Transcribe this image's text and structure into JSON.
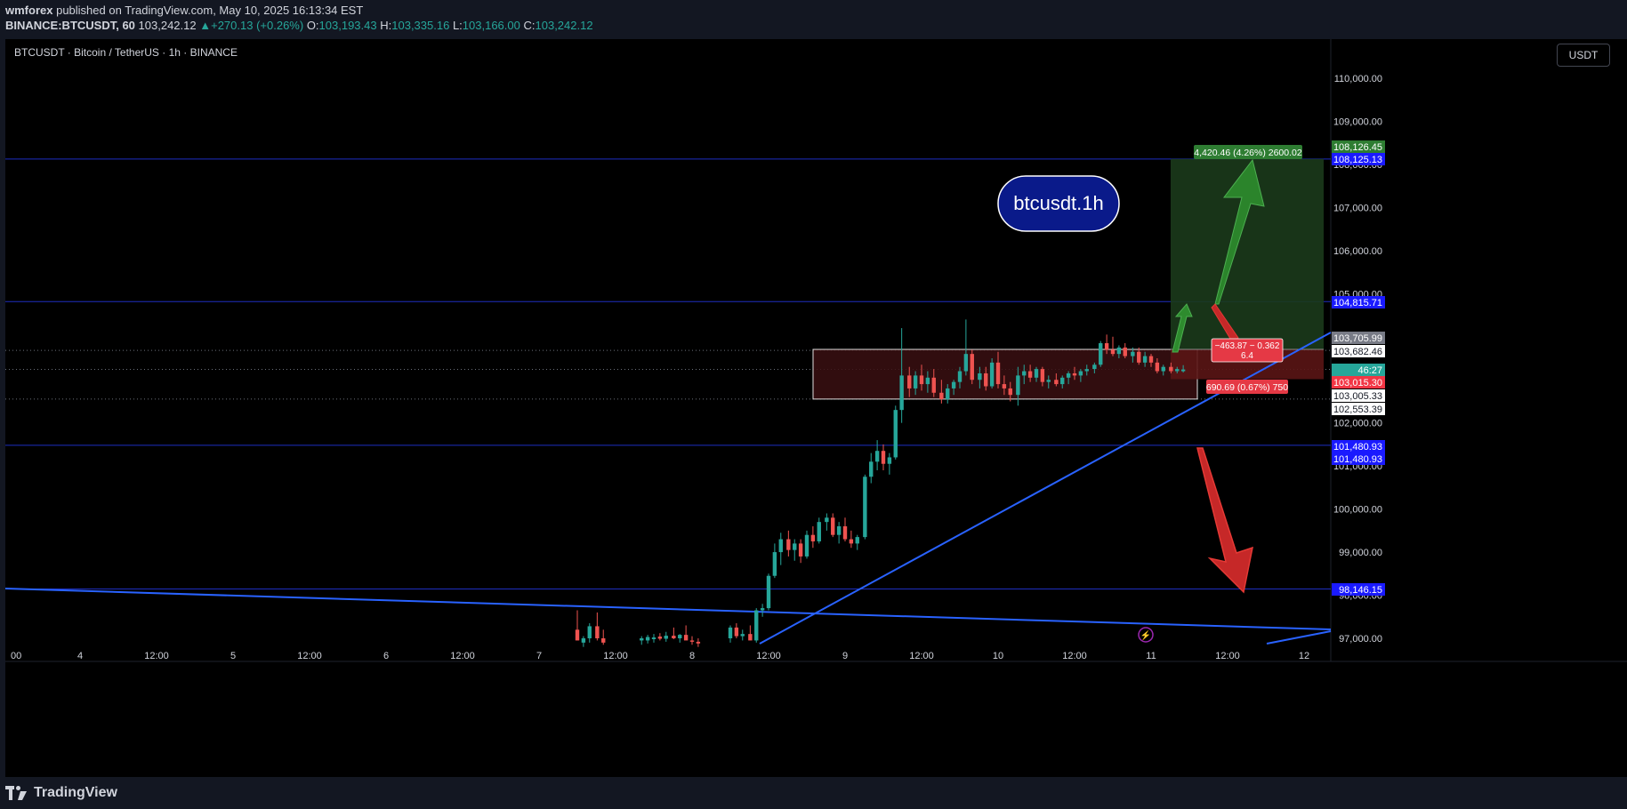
{
  "header": {
    "author": "wmforex",
    "published_text": "published on TradingView.com, May 10, 2025 16:13:34 EST",
    "symbol_line": "BINANCE:BTCUSDT, 60",
    "last": "103,242.12",
    "change": "+270.13 (+0.26%)",
    "open_label": "O:",
    "open": "103,193.43",
    "high_label": "H:",
    "high": "103,335.16",
    "low_label": "L:",
    "low": "103,166.00",
    "close_label": "C:",
    "close": "103,242.12"
  },
  "chart_title": "BTCUSDT · Bitcoin / TetherUS · 1h · BINANCE",
  "currency_button": "USDT",
  "annotation_label": "btcusdt.1h",
  "footer": {
    "brand": "TradingView"
  },
  "colors": {
    "up": "#26a69a",
    "down": "#ef5350",
    "bg": "#000000",
    "trendline": "#2962ff",
    "level_line": "#1e2ebf",
    "target_zone": "#1b3a1b",
    "stop_zone": "#5a1515",
    "green_arrow": "#2e8b2e",
    "red_arrow": "#c62828"
  },
  "chart_data": {
    "type": "candlestick",
    "y_axis": {
      "ticks": [
        "110,000.00",
        "109,000.00",
        "108,000.00",
        "107,000.00",
        "106,000.00",
        "105,000.00",
        "104,000.00",
        "103,000.00",
        "102,000.00",
        "101,000.00",
        "100,000.00",
        "99,000.00",
        "98,000.00",
        "97,000.00"
      ],
      "ylim": [
        96700,
        110800
      ]
    },
    "x_axis": {
      "ticks": [
        "00",
        "4",
        "12:00",
        "5",
        "12:00",
        "6",
        "12:00",
        "7",
        "12:00",
        "8",
        "12:00",
        "9",
        "12:00",
        "10",
        "12:00",
        "11",
        "12:00",
        "12"
      ]
    },
    "price_labels": [
      {
        "value": "108,126.45",
        "style": "green"
      },
      {
        "value": "108,125.13",
        "style": "blue"
      },
      {
        "value": "104,815.71",
        "style": "blue"
      },
      {
        "value": "103,705.99",
        "style": "gray"
      },
      {
        "value": "103,682.46",
        "style": "white"
      },
      {
        "value": "46:27",
        "style": "teal"
      },
      {
        "value": "103,015.30",
        "style": "red"
      },
      {
        "value": "103,005.33",
        "style": "white"
      },
      {
        "value": "102,553.39",
        "style": "white"
      },
      {
        "value": "101,480.93",
        "style": "blue"
      },
      {
        "value": "101,480.93",
        "style": "blue"
      },
      {
        "value": "98,146.15",
        "style": "blue"
      }
    ],
    "levels": [
      108125.13,
      104815.71,
      101480.93,
      98146.15
    ],
    "dotted_levels": [
      103682.46,
      103242.12,
      102553.39
    ],
    "range_box": {
      "from_label": "9",
      "to_label": "11",
      "top": 103705.99,
      "bottom": 102553.39
    },
    "position": {
      "entry": 103705.99,
      "target": 108126.45,
      "stop": 103015.3,
      "target_text": "4,420.46 (4.26%) 2600.02",
      "stop_text": "690.69 (0.67%) 750",
      "pnl_line1": "−463.87 − 0.362",
      "pnl_line2": "6.4"
    },
    "candles": [
      [
        7.25,
        97200,
        97650,
        96950,
        96950
      ],
      [
        7.29,
        96900,
        97050,
        96800,
        97000
      ],
      [
        7.33,
        97000,
        97350,
        96900,
        97280
      ],
      [
        7.38,
        97280,
        97600,
        96950,
        97000
      ],
      [
        7.42,
        97000,
        97200,
        96850,
        96900
      ],
      [
        7.67,
        96950,
        97050,
        96850,
        97000
      ],
      [
        7.71,
        96950,
        97080,
        96880,
        97030
      ],
      [
        7.75,
        96980,
        97100,
        96900,
        97020
      ],
      [
        7.79,
        97040,
        97120,
        96950,
        96990
      ],
      [
        7.83,
        96990,
        97150,
        96920,
        97060
      ],
      [
        7.88,
        97060,
        97250,
        96980,
        97000
      ],
      [
        7.92,
        97000,
        97100,
        96900,
        97080
      ],
      [
        7.96,
        97080,
        97300,
        97000,
        96950
      ],
      [
        8.0,
        96950,
        97050,
        96850,
        96920
      ],
      [
        8.04,
        96920,
        97000,
        96800,
        96880
      ],
      [
        8.25,
        97000,
        97300,
        96900,
        97250
      ],
      [
        8.29,
        97250,
        97350,
        97000,
        97050
      ],
      [
        8.33,
        97050,
        97200,
        96950,
        97100
      ],
      [
        8.38,
        97100,
        97300,
        97000,
        96950
      ],
      [
        8.42,
        96950,
        97700,
        96900,
        97650
      ],
      [
        8.46,
        97650,
        97800,
        97500,
        97700
      ],
      [
        8.5,
        97700,
        98500,
        97650,
        98450
      ],
      [
        8.54,
        98450,
        99200,
        98400,
        99000
      ],
      [
        8.58,
        99000,
        99450,
        98700,
        99300
      ],
      [
        8.63,
        99300,
        99500,
        98900,
        99050
      ],
      [
        8.67,
        99050,
        99300,
        98800,
        99200
      ],
      [
        8.71,
        99200,
        99300,
        98750,
        98900
      ],
      [
        8.75,
        98900,
        99500,
        98850,
        99400
      ],
      [
        8.79,
        99400,
        99600,
        99100,
        99250
      ],
      [
        8.83,
        99250,
        99800,
        99200,
        99700
      ],
      [
        8.88,
        99700,
        99900,
        99500,
        99800
      ],
      [
        8.92,
        99800,
        99900,
        99350,
        99400
      ],
      [
        8.96,
        99400,
        99700,
        99200,
        99600
      ],
      [
        9.0,
        99600,
        99800,
        99250,
        99300
      ],
      [
        9.04,
        99300,
        99500,
        99100,
        99200
      ],
      [
        9.08,
        99200,
        99400,
        99050,
        99350
      ],
      [
        9.13,
        99350,
        100800,
        99300,
        100750
      ],
      [
        9.17,
        100750,
        101300,
        100600,
        101100
      ],
      [
        9.21,
        101100,
        101600,
        100900,
        101350
      ],
      [
        9.25,
        101350,
        101500,
        100900,
        101050
      ],
      [
        9.29,
        101050,
        101300,
        100800,
        101200
      ],
      [
        9.33,
        101200,
        102400,
        101150,
        102300
      ],
      [
        9.37,
        102300,
        104200,
        102000,
        103100
      ],
      [
        9.42,
        103100,
        103300,
        102600,
        102800
      ],
      [
        9.46,
        102800,
        103200,
        102650,
        103100
      ],
      [
        9.5,
        103100,
        103350,
        102750,
        102900
      ],
      [
        9.54,
        102900,
        103200,
        102700,
        103050
      ],
      [
        9.58,
        103050,
        103250,
        102600,
        102700
      ],
      [
        9.63,
        102700,
        103000,
        102450,
        102550
      ],
      [
        9.67,
        102550,
        102900,
        102450,
        102800
      ],
      [
        9.71,
        102800,
        103000,
        102650,
        102950
      ],
      [
        9.75,
        102950,
        103300,
        102800,
        103200
      ],
      [
        9.79,
        103200,
        104400,
        103100,
        103600
      ],
      [
        9.83,
        103600,
        103700,
        102900,
        103000
      ],
      [
        9.88,
        103000,
        103300,
        102800,
        103150
      ],
      [
        9.92,
        103150,
        103300,
        102750,
        102850
      ],
      [
        9.96,
        102850,
        103500,
        102800,
        103400
      ],
      [
        10.0,
        103400,
        103650,
        102800,
        102900
      ],
      [
        10.04,
        102900,
        103100,
        102650,
        102800
      ],
      [
        10.08,
        102800,
        102950,
        102500,
        102650
      ],
      [
        10.13,
        102650,
        103300,
        102400,
        103100
      ],
      [
        10.17,
        103100,
        103350,
        102900,
        103200
      ],
      [
        10.21,
        103200,
        103350,
        102950,
        103050
      ],
      [
        10.25,
        103050,
        103300,
        102950,
        103250
      ],
      [
        10.29,
        103250,
        103300,
        102850,
        102950
      ],
      [
        10.33,
        102950,
        103100,
        102800,
        103000
      ],
      [
        10.38,
        103000,
        103150,
        102850,
        102900
      ],
      [
        10.42,
        102900,
        103100,
        102800,
        103050
      ],
      [
        10.46,
        103050,
        103200,
        102900,
        103150
      ],
      [
        10.5,
        103150,
        103300,
        103000,
        103100
      ],
      [
        10.54,
        103100,
        103250,
        102950,
        103200
      ],
      [
        10.58,
        103200,
        103350,
        103100,
        103250
      ],
      [
        10.63,
        103250,
        103400,
        103150,
        103350
      ],
      [
        10.67,
        103350,
        103900,
        103300,
        103850
      ],
      [
        10.71,
        103850,
        104050,
        103600,
        103700
      ],
      [
        10.75,
        103700,
        104000,
        103550,
        103600
      ],
      [
        10.79,
        103600,
        103800,
        103500,
        103750
      ],
      [
        10.83,
        103750,
        103850,
        103500,
        103550
      ],
      [
        10.88,
        103550,
        103750,
        103400,
        103650
      ],
      [
        10.92,
        103650,
        103750,
        103350,
        103400
      ],
      [
        10.96,
        103400,
        103650,
        103300,
        103550
      ],
      [
        11.0,
        103550,
        103600,
        103300,
        103400
      ],
      [
        11.04,
        103400,
        103500,
        103150,
        103200
      ],
      [
        11.08,
        103200,
        103350,
        103100,
        103300
      ],
      [
        11.13,
        103300,
        103400,
        103150,
        103200
      ],
      [
        11.17,
        103200,
        103300,
        103150,
        103250
      ],
      [
        11.21,
        103200,
        103340,
        103170,
        103240
      ]
    ]
  }
}
